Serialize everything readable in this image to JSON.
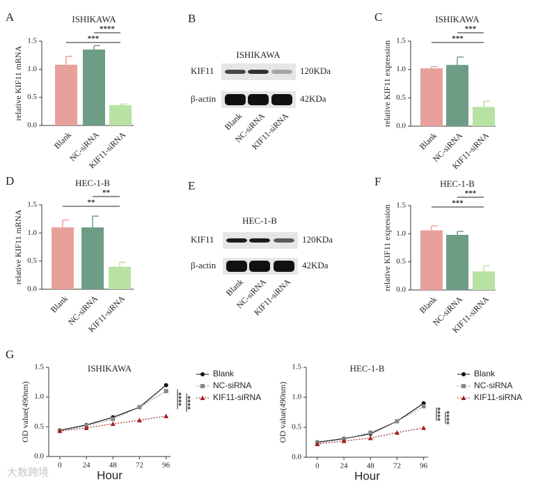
{
  "chart_data": [
    {
      "panel": "A",
      "type": "bar",
      "title": "ISHIKAWA",
      "y_label": "relative KIF11 mRNA",
      "categories": [
        "Blank",
        "NC-siRNA",
        "KIF11-siRNA"
      ],
      "values": [
        1.08,
        1.35,
        0.36
      ],
      "errors": [
        0.15,
        0.07,
        0.02
      ],
      "colors": [
        "#e8a09a",
        "#6d9e85",
        "#b8e2a4"
      ],
      "ylim": [
        0,
        1.5
      ],
      "yticks": [
        {
          "value": 0,
          "label": "0.0"
        },
        0.5,
        {
          "value": 1,
          "label": "1.0"
        },
        1.5
      ],
      "significance": [
        "****",
        "***"
      ]
    },
    {
      "panel": "C",
      "type": "bar",
      "title": "ISHIKAWA",
      "y_label": "relative KIF11 expression",
      "categories": [
        "Blank",
        "NC-siRNA",
        "KIF11-siRNA"
      ],
      "values": [
        1.02,
        1.08,
        0.34
      ],
      "errors": [
        0.03,
        0.14,
        0.1
      ],
      "colors": [
        "#e8a09a",
        "#6d9e85",
        "#b8e2a4"
      ],
      "ylim": [
        0,
        1.5
      ],
      "yticks": [
        {
          "value": 0,
          "label": "0.0"
        },
        0.5,
        {
          "value": 1,
          "label": "1.0"
        },
        1.5
      ],
      "significance": [
        "***",
        "***"
      ]
    },
    {
      "panel": "D",
      "type": "bar",
      "title": "HEC-1-B",
      "y_label": "relative KIF11 mRNA",
      "categories": [
        "Blank",
        "NC-siRNA",
        "KIF11-siRNA"
      ],
      "values": [
        1.1,
        1.1,
        0.4
      ],
      "errors": [
        0.13,
        0.2,
        0.08
      ],
      "colors": [
        "#e8a09a",
        "#6d9e85",
        "#b8e2a4"
      ],
      "ylim": [
        0,
        1.5
      ],
      "yticks": [
        {
          "value": 0,
          "label": "0.0"
        },
        0.5,
        {
          "value": 1,
          "label": "1.0"
        },
        1.5
      ],
      "significance": [
        "**",
        "**"
      ]
    },
    {
      "panel": "F",
      "type": "bar",
      "title": "HEC-1-B",
      "y_label": "relative KIF11 expression",
      "categories": [
        "Blank",
        "NC-siRNA",
        "KIF11-siRNA"
      ],
      "values": [
        1.06,
        0.98,
        0.33
      ],
      "errors": [
        0.08,
        0.06,
        0.1
      ],
      "colors": [
        "#e8a09a",
        "#6d9e85",
        "#b8e2a4"
      ],
      "ylim": [
        0,
        1.5
      ],
      "yticks": [
        {
          "value": 0,
          "label": "0.0"
        },
        0.5,
        {
          "value": 1,
          "label": "1.0"
        },
        1.5
      ],
      "significance": [
        "***",
        "***"
      ]
    },
    {
      "panel": "G",
      "type": "line",
      "title": "ISHIKAWA",
      "x_label": "Hour",
      "y_label": "OD value(490nm)",
      "x": [
        0,
        24,
        48,
        72,
        96
      ],
      "xlim": [
        -10,
        100
      ],
      "xticks": [
        0,
        24,
        48,
        72,
        96
      ],
      "ylim": [
        0,
        1.5
      ],
      "yticks": [
        {
          "value": 0,
          "label": "0.0"
        },
        0.5,
        {
          "value": 1,
          "label": "1.0"
        },
        1.5
      ],
      "series": [
        {
          "name": "Blank",
          "color": "#111111",
          "marker": "circle",
          "dashed": false,
          "values": [
            0.44,
            0.53,
            0.66,
            0.83,
            1.2
          ]
        },
        {
          "name": "NC-siRNA",
          "color": "#888888",
          "marker": "square",
          "dashed": true,
          "values": [
            0.43,
            0.52,
            0.63,
            0.83,
            1.1
          ]
        },
        {
          "name": "KIF11-siRNA",
          "color": "#a32020",
          "marker": "triangle",
          "dashed": true,
          "values": [
            0.43,
            0.48,
            0.55,
            0.61,
            0.68
          ]
        }
      ],
      "significance": [
        "****",
        "****"
      ]
    },
    {
      "type": "line",
      "title": "HEC-1-B",
      "x_label": "Hour",
      "y_label": "OD value(490nm)",
      "x": [
        0,
        24,
        48,
        72,
        96
      ],
      "xlim": [
        -10,
        100
      ],
      "xticks": [
        0,
        24,
        48,
        72,
        96
      ],
      "ylim": [
        0,
        1.5
      ],
      "yticks": [
        {
          "value": 0,
          "label": "0.0"
        },
        0.5,
        {
          "value": 1,
          "label": "1.0"
        },
        1.5
      ],
      "series": [
        {
          "name": "Blank",
          "color": "#111111",
          "marker": "circle",
          "dashed": false,
          "values": [
            0.25,
            0.31,
            0.39,
            0.6,
            0.9
          ]
        },
        {
          "name": "NC-siRNA",
          "color": "#888888",
          "marker": "square",
          "dashed": true,
          "values": [
            0.24,
            0.3,
            0.41,
            0.6,
            0.85
          ]
        },
        {
          "name": "KIF11-siRNA",
          "color": "#a32020",
          "marker": "triangle",
          "dashed": true,
          "values": [
            0.22,
            0.27,
            0.32,
            0.41,
            0.49
          ]
        }
      ],
      "significance": [
        "****",
        "****"
      ]
    }
  ],
  "blots": [
    {
      "panel": "B",
      "title": "ISHIKAWA",
      "lanes": [
        "Blank",
        "NC-siRNA",
        "KIF11-siRNA"
      ],
      "rows": [
        {
          "label": "KIF11",
          "size": "120KDa"
        },
        {
          "label": "β-actin",
          "size": "42KDa"
        }
      ]
    },
    {
      "panel": "E",
      "title": "HEC-1-B",
      "lanes": [
        "Blank",
        "NC-siRNA",
        "KIF11-siRNA"
      ],
      "rows": [
        {
          "label": "KIF11",
          "size": "120KDa"
        },
        {
          "label": "β-actin",
          "size": "42KDa"
        }
      ]
    }
  ],
  "watermark": "大数跨境"
}
